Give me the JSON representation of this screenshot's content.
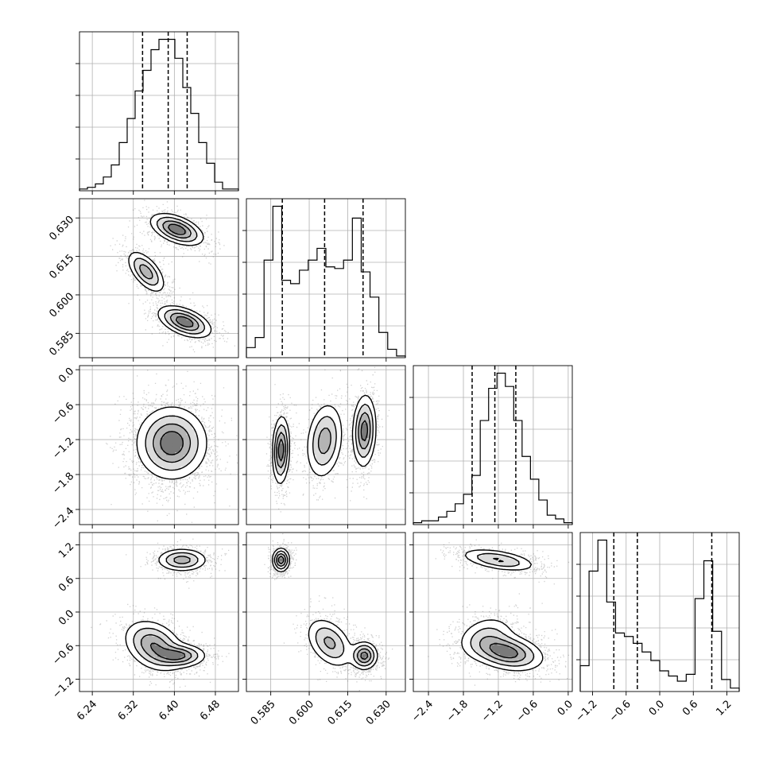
{
  "chart_data": {
    "type": "corner",
    "title": "",
    "grid": true,
    "params": [
      {
        "ticks": [
          "6.24",
          "6.32",
          "6.40",
          "6.48"
        ],
        "tick_values": [
          6.24,
          6.32,
          6.4,
          6.48
        ],
        "range": [
          6.215,
          6.525
        ],
        "quantiles": [
          6.338,
          6.388,
          6.425
        ]
      },
      {
        "ticks": [
          "0.585",
          "0.600",
          "0.615",
          "0.630"
        ],
        "tick_values": [
          0.585,
          0.6,
          0.615,
          0.63
        ],
        "range": [
          0.5755,
          0.6375
        ],
        "quantiles": [
          0.5895,
          0.606,
          0.621
        ]
      },
      {
        "ticks": [
          "−2.4",
          "−1.8",
          "−1.2",
          "−0.6",
          "0.0"
        ],
        "tick_values": [
          -2.4,
          -1.8,
          -1.2,
          -0.6,
          0.0
        ],
        "range": [
          -2.66,
          0.07
        ],
        "quantiles": [
          -1.65,
          -1.26,
          -0.9
        ]
      },
      {
        "ticks": [
          "−1.2",
          "−0.6",
          "0.0",
          "0.6",
          "1.2"
        ],
        "tick_values": [
          -1.2,
          -0.6,
          0.0,
          0.6,
          1.2
        ],
        "range": [
          -1.42,
          1.42
        ],
        "quantiles": [
          -0.82,
          -0.4,
          0.93
        ]
      }
    ],
    "histograms": [
      {
        "param": 0,
        "counts": [
          1,
          2,
          4,
          8,
          15,
          28,
          42,
          58,
          70,
          82,
          88,
          88,
          77,
          60,
          45,
          28,
          16,
          5,
          1,
          1
        ]
      },
      {
        "param": 1,
        "counts": [
          6,
          12,
          58,
          90,
          46,
          44,
          52,
          58,
          65,
          54,
          53,
          58,
          83,
          51,
          36,
          15,
          5,
          1
        ]
      },
      {
        "param": 2,
        "counts": [
          1,
          2,
          2,
          4,
          7,
          11,
          16,
          26,
          55,
          72,
          80,
          73,
          55,
          36,
          24,
          13,
          5,
          3,
          1
        ]
      },
      {
        "param": 3,
        "counts": [
          15,
          70,
          88,
          52,
          34,
          32,
          28,
          23,
          18,
          12,
          9,
          6,
          10,
          54,
          76,
          35,
          7,
          2
        ]
      }
    ],
    "pairs": [
      {
        "x_param": 0,
        "y_param": 1,
        "modes": [
          {
            "mx": 6.405,
            "my": 0.6255,
            "sx": 0.025,
            "sy": 0.003,
            "rho": -0.5,
            "w": 1.0
          },
          {
            "mx": 6.345,
            "my": 0.609,
            "sx": 0.018,
            "sy": 0.004,
            "rho": -0.6,
            "w": 0.7
          },
          {
            "mx": 6.42,
            "my": 0.5895,
            "sx": 0.025,
            "sy": 0.003,
            "rho": -0.5,
            "w": 1.0
          }
        ]
      },
      {
        "x_param": 0,
        "y_param": 2,
        "modes": [
          {
            "mx": 6.395,
            "my": -1.26,
            "sx": 0.033,
            "sy": 0.3,
            "rho": 0.0,
            "w": 1.0
          }
        ]
      },
      {
        "x_param": 1,
        "y_param": 2,
        "modes": [
          {
            "mx": 0.589,
            "my": -1.38,
            "sx": 0.0016,
            "sy": 0.28,
            "rho": 0.1,
            "w": 1.0
          },
          {
            "mx": 0.606,
            "my": -1.22,
            "sx": 0.0035,
            "sy": 0.32,
            "rho": 0.2,
            "w": 0.7
          },
          {
            "mx": 0.6215,
            "my": -1.05,
            "sx": 0.0022,
            "sy": 0.3,
            "rho": 0.1,
            "w": 0.95
          }
        ]
      },
      {
        "x_param": 0,
        "y_param": 3,
        "modes": [
          {
            "mx": 6.415,
            "my": 0.93,
            "sx": 0.024,
            "sy": 0.1,
            "rho": 0.0,
            "w": 0.6
          },
          {
            "mx": 6.36,
            "my": -0.6,
            "sx": 0.028,
            "sy": 0.22,
            "rho": -0.3,
            "w": 0.7
          },
          {
            "mx": 6.41,
            "my": -0.78,
            "sx": 0.025,
            "sy": 0.1,
            "rho": 0.0,
            "w": 0.7
          }
        ]
      },
      {
        "x_param": 1,
        "y_param": 3,
        "modes": [
          {
            "mx": 0.589,
            "my": 0.93,
            "sx": 0.0016,
            "sy": 0.1,
            "rho": 0.0,
            "w": 1.0
          },
          {
            "mx": 0.608,
            "my": -0.55,
            "sx": 0.0045,
            "sy": 0.22,
            "rho": -0.4,
            "w": 0.6
          },
          {
            "mx": 0.6215,
            "my": -0.78,
            "sx": 0.0025,
            "sy": 0.12,
            "rho": 0.0,
            "w": 0.9
          }
        ]
      },
      {
        "x_param": 2,
        "y_param": 3,
        "modes": [
          {
            "mx": -1.2,
            "my": 0.93,
            "sx": 0.32,
            "sy": 0.1,
            "rho": -0.5,
            "w": 0.6
          },
          {
            "mx": -1.05,
            "my": -0.72,
            "sx": 0.3,
            "sy": 0.16,
            "rho": -0.3,
            "w": 1.0
          },
          {
            "mx": -1.4,
            "my": -0.45,
            "sx": 0.25,
            "sy": 0.2,
            "rho": 0.2,
            "w": 0.4
          }
        ]
      }
    ]
  }
}
